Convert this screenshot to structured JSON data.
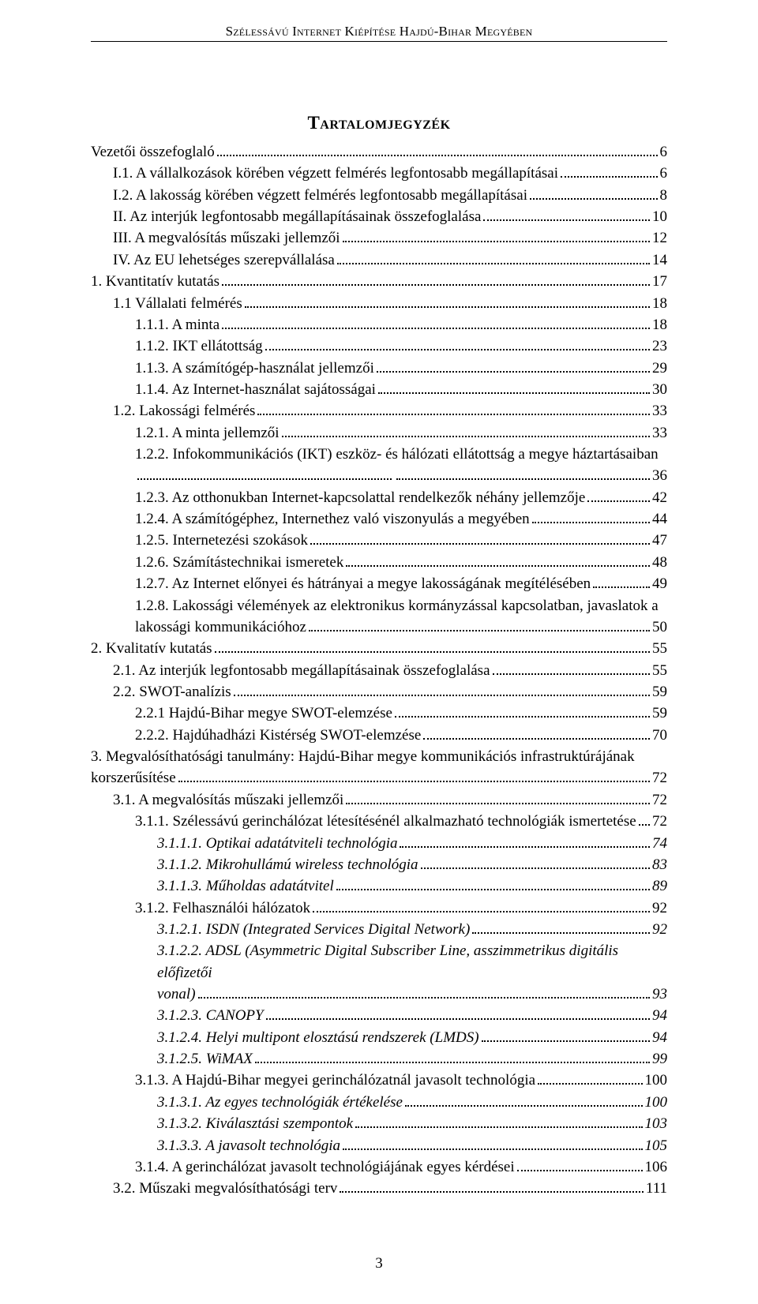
{
  "header": "Szélessávú Internet Kiépítése Hajdú-Bihar Megyében",
  "title": "Tartalomjegyzék",
  "page_number": "3",
  "toc": [
    {
      "label": "Vezetői összefoglaló",
      "page": "6",
      "indent": 0,
      "italic": false
    },
    {
      "label": "I.1. A vállalkozások körében végzett felmérés legfontosabb megállapításai",
      "page": "6",
      "indent": 1,
      "italic": false
    },
    {
      "label": "I.2. A lakosság körében végzett felmérés legfontosabb megállapításai",
      "page": "8",
      "indent": 1,
      "italic": false
    },
    {
      "label": "II. Az interjúk legfontosabb megállapításainak összefoglalása",
      "page": "10",
      "indent": 1,
      "italic": false
    },
    {
      "label": "III. A megvalósítás műszaki jellemzői",
      "page": "12",
      "indent": 1,
      "italic": false
    },
    {
      "label": "IV. Az EU lehetséges szerepvállalása",
      "page": "14",
      "indent": 1,
      "italic": false
    },
    {
      "label": "1.  Kvantitatív kutatás",
      "page": "17",
      "indent": 0,
      "italic": false
    },
    {
      "label": "1.1 Vállalati felmérés",
      "page": "18",
      "indent": 1,
      "italic": false
    },
    {
      "label": "1.1.1. A minta",
      "page": "18",
      "indent": 2,
      "italic": false
    },
    {
      "label": "1.1.2. IKT ellátottság",
      "page": "23",
      "indent": 2,
      "italic": false
    },
    {
      "label": "1.1.3. A számítógép-használat jellemzői",
      "page": "29",
      "indent": 2,
      "italic": false
    },
    {
      "label": "1.1.4. Az Internet-használat sajátosságai",
      "page": "30",
      "indent": 2,
      "italic": false
    },
    {
      "label": "1.2. Lakossági felmérés",
      "page": "33",
      "indent": 1,
      "italic": false
    },
    {
      "label": "1.2.1. A minta jellemzői",
      "page": "33",
      "indent": 2,
      "italic": false
    },
    {
      "label": "1.2.2. Infokommunikációs (IKT) eszköz- és hálózati ellátottság a megye háztartásaiban",
      "page": "",
      "indent": 2,
      "italic": false,
      "nodots": true
    },
    {
      "label": "",
      "page": "36",
      "indent": 2,
      "italic": false,
      "continuation": true
    },
    {
      "label": "1.2.3. Az otthonukban Internet-kapcsolattal rendelkezők néhány jellemzője",
      "page": "42",
      "indent": 2,
      "italic": false
    },
    {
      "label": "1.2.4. A számítógéphez, Internethez való viszonyulás a megyében",
      "page": "44",
      "indent": 2,
      "italic": false
    },
    {
      "label": "1.2.5. Internetezési szokások",
      "page": "47",
      "indent": 2,
      "italic": false
    },
    {
      "label": "1.2.6. Számítástechnikai ismeretek",
      "page": "48",
      "indent": 2,
      "italic": false
    },
    {
      "label": "1.2.7. Az Internet előnyei és hátrányai a megye lakosságának megítélésében",
      "page": "49",
      "indent": 2,
      "italic": false
    },
    {
      "label": "1.2.8. Lakossági vélemények az elektronikus kormányzással kapcsolatban, javaslatok a",
      "page": "",
      "indent": 2,
      "italic": false,
      "nodots": true,
      "noflex": true
    },
    {
      "label": "lakossági kommunikációhoz",
      "page": "50",
      "indent": 2,
      "italic": false
    },
    {
      "label": "2.  Kvalitatív kutatás",
      "page": "55",
      "indent": 0,
      "italic": false
    },
    {
      "label": "2.1. Az interjúk legfontosabb megállapításainak összefoglalása",
      "page": "55",
      "indent": 1,
      "italic": false
    },
    {
      "label": "2.2. SWOT-analízis",
      "page": "59",
      "indent": 1,
      "italic": false
    },
    {
      "label": "2.2.1 Hajdú-Bihar megye SWOT-elemzése",
      "page": "59",
      "indent": 2,
      "italic": false
    },
    {
      "label": "2.2.2. Hajdúhadházi Kistérség SWOT-elemzése",
      "page": "70",
      "indent": 2,
      "italic": false
    },
    {
      "label": "3. Megvalósíthatósági tanulmány: Hajdú-Bihar megye kommunikációs infrastruktúrájának",
      "page": "",
      "indent": 0,
      "italic": false,
      "nodots": true,
      "noflex": true
    },
    {
      "label": "korszerűsítése",
      "page": "72",
      "indent": 0,
      "italic": false
    },
    {
      "label": "3.1. A megvalósítás műszaki jellemzői",
      "page": "72",
      "indent": 1,
      "italic": false
    },
    {
      "label": "3.1.1. Szélessávú gerinchálózat létesítésénél alkalmazható technológiák ismertetése",
      "page": "72",
      "indent": 2,
      "italic": false
    },
    {
      "label": "3.1.1.1. Optikai adatátviteli technológia",
      "page": "74",
      "indent": 3,
      "italic": true
    },
    {
      "label": "3.1.1.2. Mikrohullámú wireless technológia",
      "page": "83",
      "indent": 3,
      "italic": true
    },
    {
      "label": "3.1.1.3. Műholdas adatátvitel",
      "page": "89",
      "indent": 3,
      "italic": true
    },
    {
      "label": "3.1.2. Felhasználói hálózatok",
      "page": "92",
      "indent": 2,
      "italic": false
    },
    {
      "label": "3.1.2.1. ISDN (Integrated Services Digital Network)",
      "page": "92",
      "indent": 3,
      "italic": true
    },
    {
      "label": "3.1.2.2. ADSL (Asymmetric Digital Subscriber Line, asszimmetrikus digitális előfizetői",
      "page": "",
      "indent": 3,
      "italic": true,
      "nodots": true,
      "noflex": true
    },
    {
      "label": "vonal)",
      "page": "93",
      "indent": 3,
      "italic": true
    },
    {
      "label": "3.1.2.3. CANOPY",
      "page": "94",
      "indent": 3,
      "italic": true
    },
    {
      "label": "3.1.2.4. Helyi multipont elosztású rendszerek (LMDS)",
      "page": "94",
      "indent": 3,
      "italic": true
    },
    {
      "label": "3.1.2.5. WiMAX",
      "page": "99",
      "indent": 3,
      "italic": true
    },
    {
      "label": "3.1.3. A Hajdú-Bihar megyei gerinchálózatnál javasolt technológia",
      "page": "100",
      "indent": 2,
      "italic": false
    },
    {
      "label": "3.1.3.1. Az egyes technológiák értékelése",
      "page": "100",
      "indent": 3,
      "italic": true
    },
    {
      "label": "3.1.3.2. Kiválasztási szempontok",
      "page": "103",
      "indent": 3,
      "italic": true
    },
    {
      "label": "3.1.3.3. A javasolt technológia",
      "page": "105",
      "indent": 3,
      "italic": true
    },
    {
      "label": "3.1.4. A gerinchálózat javasolt technológiájának egyes kérdései",
      "page": "106",
      "indent": 2,
      "italic": false
    },
    {
      "label": "3.2. Műszaki megvalósíthatósági terv",
      "page": "111",
      "indent": 1,
      "italic": false
    }
  ]
}
